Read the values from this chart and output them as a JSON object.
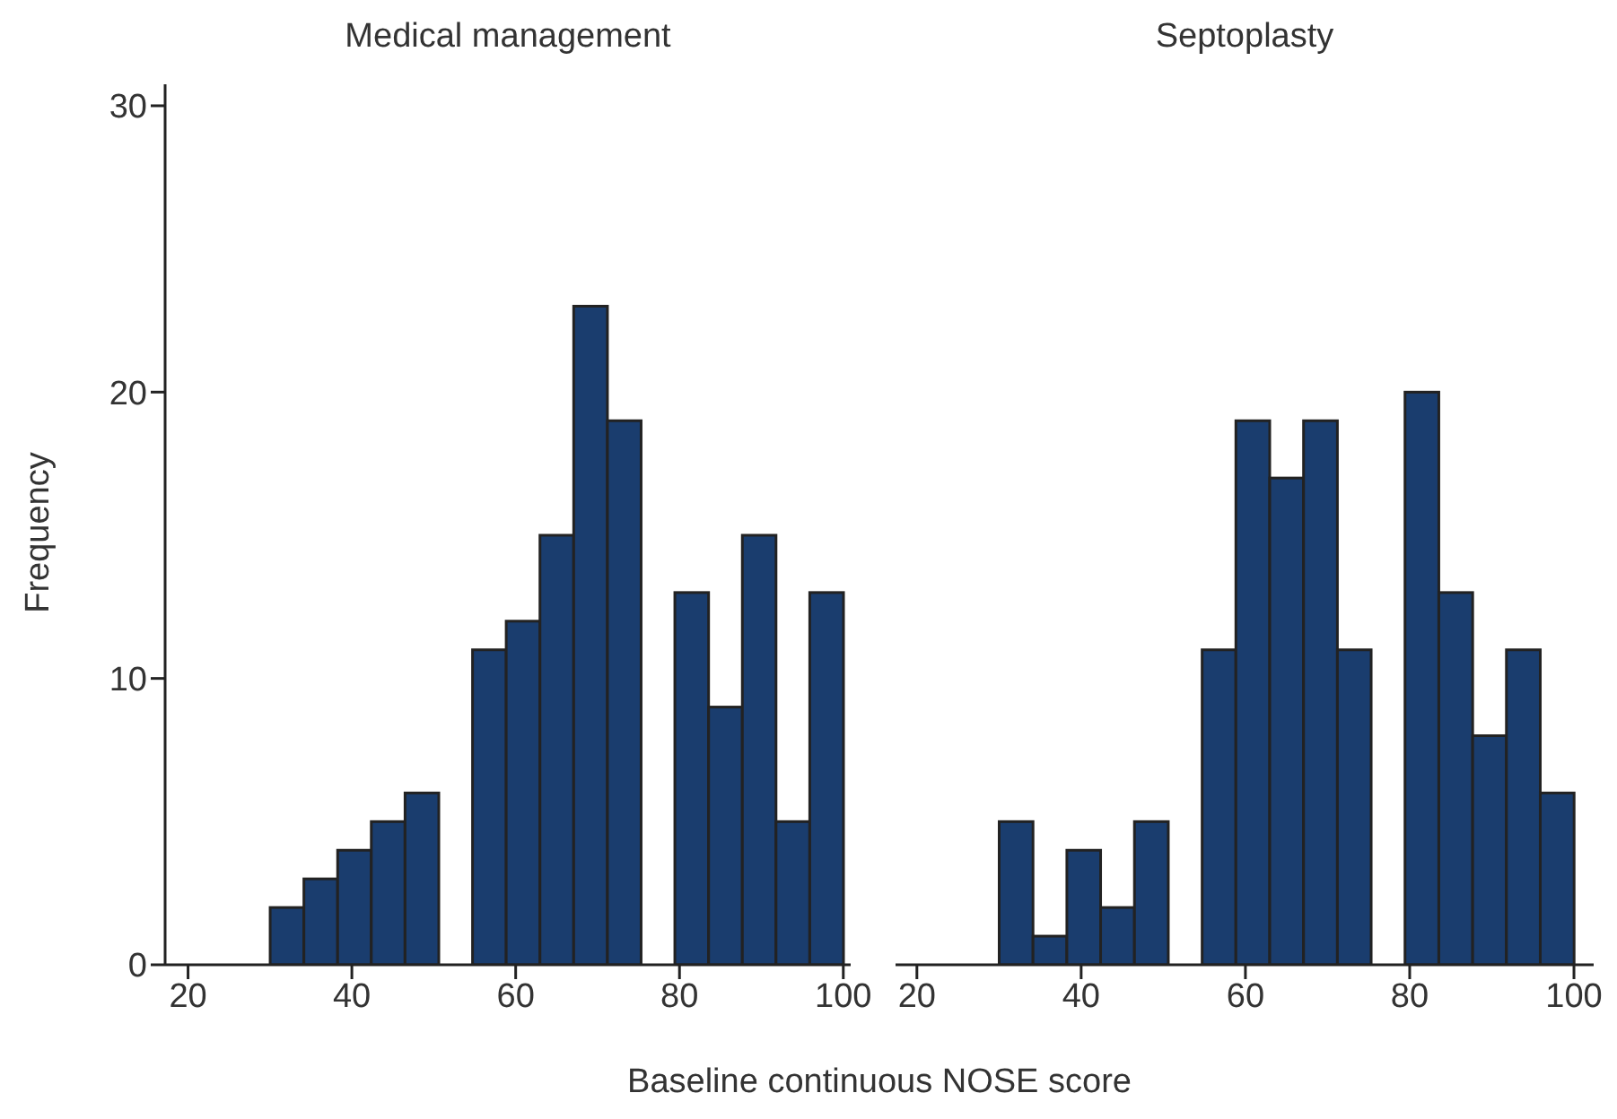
{
  "chart_data": [
    {
      "type": "histogram",
      "title": "Medical management",
      "xlabel": "Baseline continuous NOSE score",
      "ylabel": "Frequency",
      "bins": [
        30,
        34.12,
        38.24,
        42.35,
        46.47,
        50.59,
        54.71,
        58.82,
        62.94,
        67.06,
        71.18,
        75.29,
        79.41,
        83.53,
        87.65,
        91.76,
        95.88,
        100
      ],
      "values": [
        2,
        3,
        4,
        5,
        6,
        0,
        11,
        12,
        15,
        23,
        19,
        0,
        13,
        9,
        15,
        5,
        13
      ],
      "color": "#1a3d6e",
      "xlim": [
        17.2,
        100.9
      ],
      "xticks": [
        20,
        40,
        60,
        80,
        100
      ],
      "ylim": [
        0,
        30.75
      ],
      "yticks": [
        0,
        10,
        20,
        30
      ]
    },
    {
      "type": "histogram",
      "title": "Septoplasty",
      "bins": [
        30,
        34.12,
        38.24,
        42.35,
        46.47,
        50.59,
        54.71,
        58.82,
        62.94,
        67.06,
        71.18,
        75.29,
        79.41,
        83.53,
        87.65,
        91.76,
        95.88,
        100
      ],
      "values": [
        5,
        1,
        4,
        2,
        5,
        0,
        11,
        19,
        17,
        19,
        11,
        0,
        20,
        13,
        8,
        11,
        6
      ],
      "color": "#1a3d6e",
      "xlim": [
        17.4,
        102.4
      ],
      "xticks": [
        20,
        40,
        60,
        80,
        100
      ],
      "ylim": [
        0,
        30
      ],
      "yticks": [
        0,
        10,
        20,
        30
      ],
      "tick_labels": "x"
    }
  ]
}
